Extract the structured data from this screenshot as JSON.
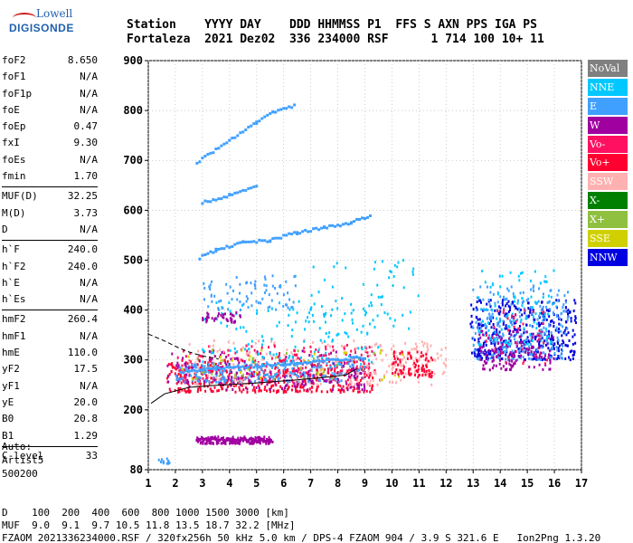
{
  "logo": {
    "line1": "Lowell",
    "line2": "DIGISONDE"
  },
  "header": {
    "line1": "Station    YYYY DAY    DDD HHMMSS P1  FFS S AXN PPS IGA PS",
    "line2": "Fortaleza  2021 Dez02  336 234000 RSF      1 714 100 10+ 11"
  },
  "params": {
    "group1": [
      {
        "label": "foF2",
        "value": "8.650"
      },
      {
        "label": "foF1",
        "value": "N/A"
      },
      {
        "label": "foF1p",
        "value": "N/A"
      },
      {
        "label": "foE",
        "value": "N/A"
      },
      {
        "label": "foEp",
        "value": "0.47"
      },
      {
        "label": "fxI",
        "value": "9.30"
      },
      {
        "label": "foEs",
        "value": "N/A"
      },
      {
        "label": "fmin",
        "value": "1.70"
      }
    ],
    "group2": [
      {
        "label": "MUF(D)",
        "value": "32.25"
      },
      {
        "label": "M(D)",
        "value": "3.73"
      },
      {
        "label": "D",
        "value": "N/A"
      }
    ],
    "group3": [
      {
        "label": "h`F",
        "value": "240.0"
      },
      {
        "label": "h`F2",
        "value": "240.0"
      },
      {
        "label": "h`E",
        "value": "N/A"
      },
      {
        "label": "h`Es",
        "value": "N/A"
      }
    ],
    "group4": [
      {
        "label": "hmF2",
        "value": "260.4"
      },
      {
        "label": "hmF1",
        "value": "N/A"
      },
      {
        "label": "hmE",
        "value": "110.0"
      },
      {
        "label": "yF2",
        "value": "17.5"
      },
      {
        "label": "yF1",
        "value": "N/A"
      },
      {
        "label": "yE",
        "value": "20.0"
      },
      {
        "label": "B0",
        "value": "20.8"
      },
      {
        "label": "B1",
        "value": "1.29"
      }
    ],
    "group5": [
      {
        "label": "C-level",
        "value": "33"
      }
    ]
  },
  "auto": {
    "line1": "Auto:",
    "line2": "Artist5",
    "line3": "500200"
  },
  "legend": [
    {
      "label": "NoVal",
      "color": "#808080"
    },
    {
      "label": "NNE",
      "color": "#00c8ff"
    },
    {
      "label": "E",
      "color": "#40a0ff"
    },
    {
      "label": "W",
      "color": "#a000a0"
    },
    {
      "label": "Vo-",
      "color": "#ff1060"
    },
    {
      "label": "Vo+",
      "color": "#ff0030"
    },
    {
      "label": "SSW",
      "color": "#ffb0b0"
    },
    {
      "label": "X-",
      "color": "#008000"
    },
    {
      "label": "X+",
      "color": "#90c040"
    },
    {
      "label": "SSE",
      "color": "#d0d000"
    },
    {
      "label": "NNW",
      "color": "#0000e0"
    }
  ],
  "footer": {
    "line1": "D    100  200  400  600  800 1000 1500 3000 [km]",
    "line2": "MUF  9.0  9.1  9.7 10.5 11.8 13.5 18.7 32.2 [MHz]",
    "line3": "FZAOM_2021336234000.RSF / 320fx256h 50 kHz 5.0 km / DPS-4 FZAOM 904 / 3.9 S 321.6 E   Ion2Png 1.3.20"
  },
  "chart_data": {
    "type": "scatter",
    "xlim": [
      1,
      17
    ],
    "ylim": [
      80,
      900
    ],
    "x_ticks": [
      1,
      2,
      3,
      4,
      5,
      6,
      7,
      8,
      9,
      10,
      11,
      12,
      13,
      14,
      15,
      16,
      17
    ],
    "y_ticks": [
      80,
      200,
      300,
      400,
      500,
      600,
      700,
      800,
      900
    ],
    "grid": true,
    "clusters": [
      {
        "color": "#ff0030",
        "xmin": 1.7,
        "xmax": 9.3,
        "ymin": 235,
        "ymax": 300,
        "n": 420
      },
      {
        "color": "#ff1060",
        "xmin": 2.0,
        "xmax": 9.6,
        "ymin": 255,
        "ymax": 330,
        "n": 220
      },
      {
        "color": "#ffb0b0",
        "xmin": 2.5,
        "xmax": 11.5,
        "ymin": 250,
        "ymax": 340,
        "n": 200
      },
      {
        "color": "#40a0ff",
        "xmin": 2.0,
        "xmax": 9.0,
        "ymin": 255,
        "ymax": 295,
        "n": 220
      },
      {
        "color": "#a000a0",
        "xmin": 1.7,
        "xmax": 9.0,
        "ymin": 240,
        "ymax": 320,
        "n": 160
      },
      {
        "color": "#00c8ff",
        "xmin": 3.0,
        "xmax": 9.5,
        "ymin": 290,
        "ymax": 420,
        "n": 120
      },
      {
        "color": "#d0d000",
        "xmin": 2.2,
        "xmax": 10.5,
        "ymin": 260,
        "ymax": 320,
        "n": 40
      },
      {
        "color": "#90c040",
        "xmin": 2.5,
        "xmax": 9.5,
        "ymin": 260,
        "ymax": 320,
        "n": 30
      },
      {
        "color": "#0000e0",
        "xmin": 12.9,
        "xmax": 16.8,
        "ymin": 300,
        "ymax": 420,
        "n": 380
      },
      {
        "color": "#40a0ff",
        "xmin": 13.0,
        "xmax": 16.5,
        "ymin": 300,
        "ymax": 450,
        "n": 260
      },
      {
        "color": "#a000a0",
        "xmin": 13.2,
        "xmax": 16.0,
        "ymin": 280,
        "ymax": 360,
        "n": 140
      },
      {
        "color": "#00c8ff",
        "xmin": 13.2,
        "xmax": 16.0,
        "ymin": 330,
        "ymax": 480,
        "n": 100
      },
      {
        "color": "#ff1060",
        "xmin": 13.2,
        "xmax": 16.0,
        "ymin": 290,
        "ymax": 400,
        "n": 40
      },
      {
        "color": "#ffb0b0",
        "xmin": 10.0,
        "xmax": 12.0,
        "ymin": 270,
        "ymax": 340,
        "n": 60
      },
      {
        "color": "#ff0030",
        "xmin": 10.0,
        "xmax": 11.5,
        "ymin": 265,
        "ymax": 320,
        "n": 80
      },
      {
        "color": "#40a0ff",
        "xmin": 3.0,
        "xmax": 6.5,
        "ymin": 400,
        "ymax": 470,
        "n": 80
      },
      {
        "color": "#a000a0",
        "xmin": 3.0,
        "xmax": 4.5,
        "ymin": 375,
        "ymax": 395,
        "n": 40
      },
      {
        "color": "#00c8ff",
        "xmin": 7.0,
        "xmax": 11.0,
        "ymin": 350,
        "ymax": 500,
        "n": 70
      },
      {
        "color": "#a000a0",
        "xmin": 2.8,
        "xmax": 5.6,
        "ymin": 132,
        "ymax": 146,
        "n": 160
      },
      {
        "color": "#40a0ff",
        "xmin": 1.3,
        "xmax": 1.8,
        "ymin": 92,
        "ymax": 102,
        "n": 14
      }
    ],
    "lines": [
      {
        "color": "#40a0ff",
        "points": [
          [
            2.8,
            695
          ],
          [
            4.0,
            740
          ],
          [
            5.0,
            775
          ],
          [
            5.6,
            795
          ],
          [
            6.4,
            810
          ]
        ]
      },
      {
        "color": "#40a0ff",
        "points": [
          [
            2.9,
            505
          ],
          [
            3.5,
            520
          ],
          [
            4.5,
            535
          ],
          [
            5.5,
            540
          ],
          [
            6.5,
            555
          ],
          [
            7.5,
            565
          ],
          [
            8.5,
            575
          ],
          [
            9.2,
            590
          ]
        ]
      },
      {
        "color": "#40a0ff",
        "points": [
          [
            3.0,
            615
          ],
          [
            4.0,
            630
          ],
          [
            5.0,
            650
          ]
        ]
      },
      {
        "color": "#40a0ff",
        "points": [
          [
            2.2,
            275
          ],
          [
            3.0,
            280
          ],
          [
            4.0,
            285
          ],
          [
            5.0,
            288
          ],
          [
            6.0,
            292
          ],
          [
            7.0,
            295
          ],
          [
            8.0,
            300
          ],
          [
            9.0,
            305
          ]
        ]
      },
      {
        "color": "#a000a0",
        "points": [
          [
            2.8,
            140
          ],
          [
            3.5,
            141
          ],
          [
            4.5,
            140
          ],
          [
            5.5,
            139
          ]
        ]
      }
    ],
    "model_curves": [
      {
        "style": "solid",
        "points": [
          [
            1.1,
            213
          ],
          [
            1.6,
            232
          ],
          [
            2.5,
            245
          ],
          [
            3.5,
            249
          ],
          [
            5.0,
            254
          ],
          [
            6.5,
            260
          ],
          [
            7.5,
            265
          ],
          [
            8.3,
            270
          ],
          [
            8.7,
            282
          ]
        ]
      },
      {
        "style": "dashed",
        "points": [
          [
            1.0,
            352
          ],
          [
            1.6,
            338
          ],
          [
            2.1,
            325
          ],
          [
            2.5,
            316
          ],
          [
            3.0,
            308
          ],
          [
            3.6,
            302
          ]
        ]
      }
    ]
  }
}
